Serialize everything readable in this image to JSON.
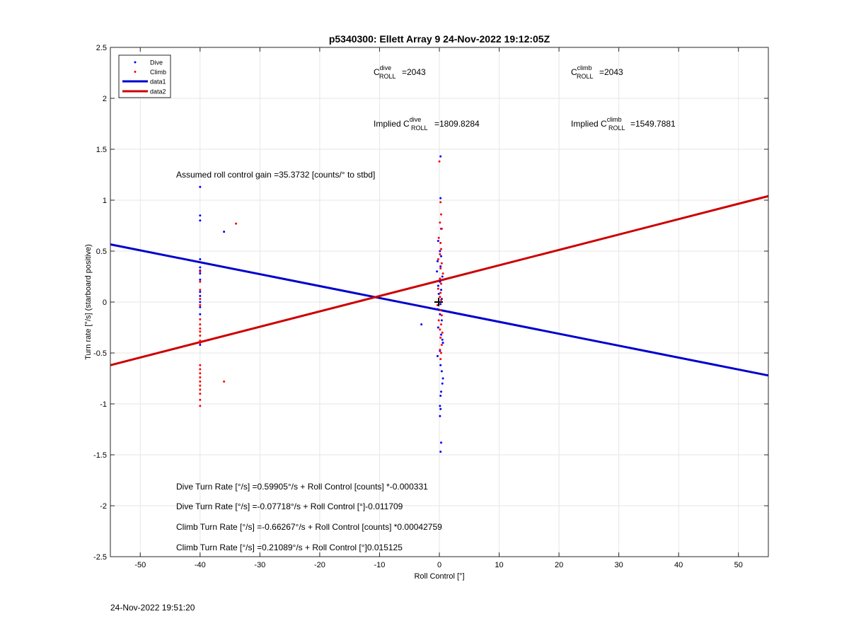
{
  "chart_data": {
    "type": "scatter",
    "title": "p5340300: Ellett Array 9 24-Nov-2022 19:12:05Z",
    "xlabel": "Roll Control [°]",
    "ylabel": "Turn rate [°/s] (starboard positive)",
    "xlim": [
      -55,
      55
    ],
    "ylim": [
      -2.5,
      2.5
    ],
    "xticks": [
      -50,
      -40,
      -30,
      -20,
      -10,
      0,
      10,
      20,
      30,
      40,
      50
    ],
    "yticks": [
      2.5,
      2,
      1.5,
      1,
      0.5,
      0,
      -0.5,
      -1,
      -1.5,
      -2,
      -2.5
    ],
    "grid": true,
    "legend_position": "top-left",
    "series": [
      {
        "name": "Dive",
        "kind": "points",
        "color": "#0000ff",
        "points": [
          [
            -40,
            1.13
          ],
          [
            -40,
            0.85
          ],
          [
            -40,
            0.8
          ],
          [
            -36,
            0.69
          ],
          [
            -40,
            0.42
          ],
          [
            -40,
            0.34
          ],
          [
            -40,
            0.31
          ],
          [
            -40,
            0.28
          ],
          [
            -40,
            0.22
          ],
          [
            -40,
            0.1
          ],
          [
            -40,
            0.06
          ],
          [
            -40,
            0.0
          ],
          [
            -40,
            -0.05
          ],
          [
            -40,
            -0.12
          ],
          [
            -40,
            -0.42
          ],
          [
            -3,
            -0.22
          ],
          [
            0.2,
            1.43
          ],
          [
            0.2,
            1.02
          ],
          [
            0.3,
            0.72
          ],
          [
            -0.2,
            0.6
          ],
          [
            0.1,
            0.5
          ],
          [
            0.3,
            0.45
          ],
          [
            -0.3,
            0.4
          ],
          [
            0.2,
            0.35
          ],
          [
            -0.4,
            0.3
          ],
          [
            0.5,
            0.25
          ],
          [
            0.1,
            0.2
          ],
          [
            -0.2,
            0.16
          ],
          [
            0.3,
            0.12
          ],
          [
            -0.1,
            0.08
          ],
          [
            0.4,
            0.03
          ],
          [
            0.2,
            -0.02
          ],
          [
            -0.3,
            -0.07
          ],
          [
            0.1,
            -0.12
          ],
          [
            0.4,
            -0.18
          ],
          [
            -0.2,
            -0.25
          ],
          [
            0.3,
            -0.32
          ],
          [
            0.5,
            -0.37
          ],
          [
            0.6,
            -0.4
          ],
          [
            0.1,
            -0.48
          ],
          [
            -0.3,
            -0.53
          ],
          [
            0.2,
            -0.62
          ],
          [
            0.4,
            -0.68
          ],
          [
            0.6,
            -0.75
          ],
          [
            0.5,
            -0.8
          ],
          [
            0.3,
            -0.88
          ],
          [
            0.2,
            -0.92
          ],
          [
            0.1,
            -1.02
          ],
          [
            0.2,
            -1.05
          ],
          [
            0.1,
            -1.12
          ],
          [
            0.3,
            -1.38
          ],
          [
            0.2,
            -1.47
          ]
        ]
      },
      {
        "name": "Climb",
        "kind": "points",
        "color": "#ff0000",
        "points": [
          [
            -34,
            0.77
          ],
          [
            -40,
            0.3
          ],
          [
            -40,
            0.2
          ],
          [
            -40,
            0.12
          ],
          [
            -40,
            0.03
          ],
          [
            -40,
            -0.03
          ],
          [
            -40,
            -0.17
          ],
          [
            -40,
            -0.22
          ],
          [
            -40,
            -0.26
          ],
          [
            -40,
            -0.29
          ],
          [
            -40,
            -0.33
          ],
          [
            -40,
            -0.38
          ],
          [
            -40,
            -0.4
          ],
          [
            -40,
            -0.62
          ],
          [
            -40,
            -0.66
          ],
          [
            -40,
            -0.7
          ],
          [
            -40,
            -0.74
          ],
          [
            -40,
            -0.78
          ],
          [
            -40,
            -0.82
          ],
          [
            -40,
            -0.86
          ],
          [
            -40,
            -0.9
          ],
          [
            -40,
            -0.96
          ],
          [
            -40,
            -1.02
          ],
          [
            -36,
            -0.78
          ],
          [
            0,
            1.38
          ],
          [
            0.2,
            0.98
          ],
          [
            0.3,
            0.86
          ],
          [
            0.1,
            0.78
          ],
          [
            0.4,
            0.72
          ],
          [
            -0.1,
            0.63
          ],
          [
            0.2,
            0.58
          ],
          [
            0.3,
            0.52
          ],
          [
            0.1,
            0.47
          ],
          [
            -0.2,
            0.42
          ],
          [
            0.4,
            0.38
          ],
          [
            0.2,
            0.33
          ],
          [
            0.6,
            0.28
          ],
          [
            0.1,
            0.23
          ],
          [
            0.3,
            0.18
          ],
          [
            -0.2,
            0.13
          ],
          [
            0.2,
            0.09
          ],
          [
            0.1,
            0.05
          ],
          [
            0.3,
            0.02
          ],
          [
            -0.3,
            -0.03
          ],
          [
            0.2,
            -0.08
          ],
          [
            0.4,
            -0.13
          ],
          [
            -0.1,
            -0.18
          ],
          [
            0.3,
            -0.22
          ],
          [
            0.1,
            -0.27
          ],
          [
            0.5,
            -0.3
          ],
          [
            0.2,
            -0.35
          ],
          [
            0.4,
            -0.42
          ],
          [
            0.1,
            -0.47
          ],
          [
            0.3,
            -0.5
          ],
          [
            0.2,
            -0.56
          ]
        ]
      },
      {
        "name": "data1",
        "kind": "line",
        "color": "#0000cc",
        "x": [
          -55,
          55
        ],
        "y": [
          0.566,
          -0.721
        ]
      },
      {
        "name": "data2",
        "kind": "line",
        "color": "#cc0000",
        "x": [
          -55,
          55
        ],
        "y": [
          -0.62,
          1.04
        ]
      }
    ],
    "annotations": {
      "c_roll_dive": {
        "prefix": "C",
        "sup": "dive",
        "sub": "ROLL",
        "value": "=2043"
      },
      "c_roll_climb": {
        "prefix": "C",
        "sup": "climb",
        "sub": "ROLL",
        "value": "=2043"
      },
      "implied_dive": {
        "prefix": "Implied C",
        "sup": "dive",
        "sub": "ROLL",
        "value": "=1809.8284"
      },
      "implied_climb": {
        "prefix": "Implied C",
        "sup": "climb",
        "sub": "ROLL",
        "value": "=1549.7881"
      },
      "gain": "Assumed roll control gain =35.3732 [counts/° to stbd]",
      "fits": [
        "Dive Turn Rate [°/s] =0.59905°/s + Roll Control [counts] *-0.000331",
        "Dive Turn Rate [°/s] =-0.07718°/s + Roll Control [°]-0.011709",
        "Climb Turn Rate [°/s] =-0.66267°/s + Roll Control [counts] *0.00042759",
        "Climb Turn Rate [°/s] =0.21089°/s + Roll Control [°]0.015125"
      ]
    }
  },
  "timestamp": "24-Nov-2022 19:51:20"
}
